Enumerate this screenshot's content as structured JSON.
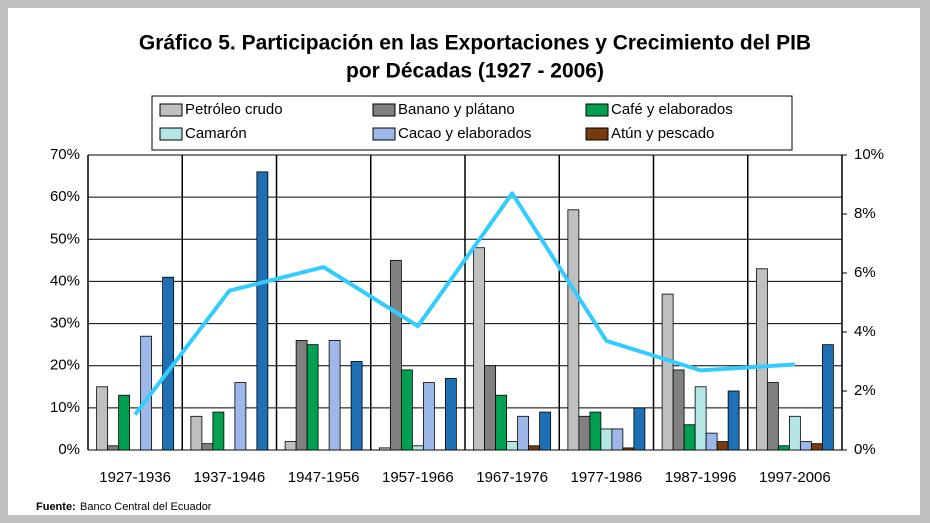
{
  "chart_data": {
    "type": "bar",
    "title": "Gráfico 5. Participación en las Exportaciones y Crecimiento del PIB",
    "subtitle": "por Décadas (1927  - 2006)",
    "source_label": "Fuente:",
    "source": "Banco Central del Ecuador",
    "categories": [
      "1927-1936",
      "1937-1946",
      "1947-1956",
      "1957-1966",
      "1967-1976",
      "1977-1986",
      "1987-1996",
      "1997-2006"
    ],
    "series": [
      {
        "name": "Petróleo crudo",
        "color": "#c0c0c0",
        "values": [
          15,
          8,
          2,
          0.5,
          48,
          57,
          37,
          43
        ]
      },
      {
        "name": "Banano y plátano",
        "color": "#808080",
        "values": [
          1,
          1.5,
          26,
          45,
          20,
          8,
          19,
          16
        ]
      },
      {
        "name": "Café y elaborados",
        "color": "#00a050",
        "values": [
          13,
          9,
          25,
          19,
          13,
          9,
          6,
          1
        ]
      },
      {
        "name": "Camarón",
        "color": "#b4e6e6",
        "values": [
          0,
          0,
          0,
          1,
          2,
          5,
          15,
          8
        ]
      },
      {
        "name": "Cacao y elaborados",
        "color": "#9db8e8",
        "values": [
          27,
          16,
          26,
          16,
          8,
          5,
          4,
          2
        ]
      },
      {
        "name": "Atún y pescado",
        "color": "#7a3a10",
        "values": [
          0,
          0,
          0,
          0,
          1,
          0.5,
          2,
          1.5
        ]
      },
      {
        "color": "#1f6fb5",
        "values": [
          41,
          66,
          21,
          17,
          9,
          10,
          14,
          25
        ]
      },
      {
        "type": "line",
        "axis": "y2",
        "color": "#33ccff",
        "values": [
          1.2,
          5.4,
          6.2,
          4.2,
          8.7,
          3.7,
          2.7,
          2.9
        ]
      }
    ],
    "ylim": [
      0,
      70
    ],
    "yticks": [
      {
        "value": 0,
        "label": "0%"
      },
      {
        "value": 10,
        "label": "10%"
      },
      {
        "value": 20,
        "label": "20%"
      },
      {
        "value": 30,
        "label": "30%"
      },
      {
        "value": 40,
        "label": "40%"
      },
      {
        "value": 50,
        "label": "50%"
      },
      {
        "value": 60,
        "label": "60%"
      },
      {
        "value": 70,
        "label": "70%"
      }
    ],
    "y2lim": [
      0,
      10
    ],
    "y2ticks": [
      {
        "value": 0,
        "label": "0%"
      },
      {
        "value": 2,
        "label": "2%"
      },
      {
        "value": 4,
        "label": "4%"
      },
      {
        "value": 6,
        "label": "6%"
      },
      {
        "value": 8,
        "label": "8%"
      },
      {
        "value": 10,
        "label": "10%"
      }
    ],
    "grid": true
  }
}
